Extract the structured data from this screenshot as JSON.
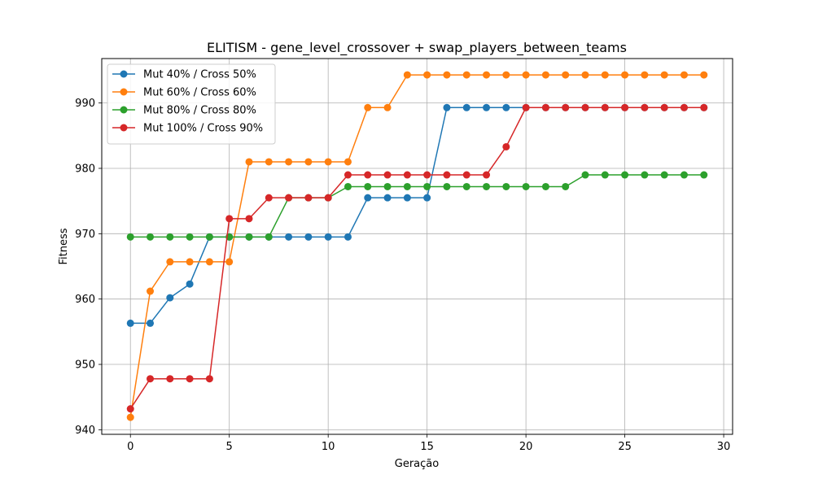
{
  "chart_data": {
    "type": "line",
    "title": "ELITISM - gene_level_crossover + swap_players_between_teams",
    "xlabel": "Geração",
    "ylabel": "Fitness",
    "xlim": [
      -1.45,
      30.45
    ],
    "ylim": [
      939.3,
      996.8
    ],
    "xticks": [
      0,
      5,
      10,
      15,
      20,
      25,
      30
    ],
    "yticks": [
      940,
      950,
      960,
      970,
      980,
      990
    ],
    "grid": true,
    "legend_position": "top-left",
    "x": [
      0,
      1,
      2,
      3,
      4,
      5,
      6,
      7,
      8,
      9,
      10,
      11,
      12,
      13,
      14,
      15,
      16,
      17,
      18,
      19,
      20,
      21,
      22,
      23,
      24,
      25,
      26,
      27,
      28,
      29
    ],
    "series": [
      {
        "name": "Mut 40% / Cross 50%",
        "color": "#1f77b4",
        "values": [
          956.3,
          956.3,
          960.2,
          962.3,
          969.5,
          969.5,
          969.5,
          969.5,
          969.5,
          969.5,
          969.5,
          969.5,
          975.5,
          975.5,
          975.5,
          975.5,
          989.3,
          989.3,
          989.3,
          989.3,
          989.3,
          989.3,
          989.3,
          989.3,
          989.3,
          989.3,
          989.3,
          989.3,
          989.3,
          989.3
        ]
      },
      {
        "name": "Mut 60% / Cross 60%",
        "color": "#ff7f0e",
        "values": [
          941.9,
          961.2,
          965.7,
          965.7,
          965.7,
          965.7,
          981.0,
          981.0,
          981.0,
          981.0,
          981.0,
          981.0,
          989.3,
          989.3,
          994.3,
          994.3,
          994.3,
          994.3,
          994.3,
          994.3,
          994.3,
          994.3,
          994.3,
          994.3,
          994.3,
          994.3,
          994.3,
          994.3,
          994.3,
          994.3
        ]
      },
      {
        "name": "Mut 80% / Cross 80%",
        "color": "#2ca02c",
        "values": [
          969.5,
          969.5,
          969.5,
          969.5,
          969.5,
          969.5,
          969.5,
          969.5,
          975.5,
          975.5,
          975.5,
          977.2,
          977.2,
          977.2,
          977.2,
          977.2,
          977.2,
          977.2,
          977.2,
          977.2,
          977.2,
          977.2,
          977.2,
          979.0,
          979.0,
          979.0,
          979.0,
          979.0,
          979.0,
          979.0
        ]
      },
      {
        "name": "Mut 100% / Cross 90%",
        "color": "#d62728",
        "values": [
          943.2,
          947.8,
          947.8,
          947.8,
          947.8,
          972.3,
          972.3,
          975.5,
          975.5,
          975.5,
          975.5,
          979.0,
          979.0,
          979.0,
          979.0,
          979.0,
          979.0,
          979.0,
          979.0,
          983.3,
          989.3,
          989.3,
          989.3,
          989.3,
          989.3,
          989.3,
          989.3,
          989.3,
          989.3,
          989.3
        ]
      }
    ]
  }
}
